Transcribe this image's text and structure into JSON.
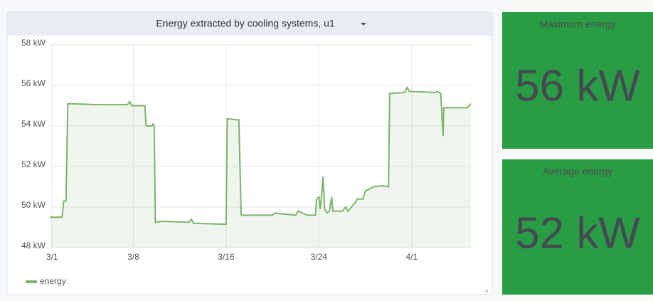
{
  "chart_data": {
    "type": "line",
    "title": "Energy extracted by cooling systems, u1",
    "x": [
      -0.2,
      0.85,
      1.0,
      1.2,
      1.35,
      4,
      6.5,
      6.7,
      6.85,
      8.0,
      8.1,
      8.6,
      8.7,
      8.8,
      8.9,
      9.5,
      11.8,
      12.0,
      12.2,
      15.0,
      15.1,
      16.1,
      16.3,
      19.0,
      19.2,
      21.0,
      21.2,
      21.6,
      22.0,
      22.7,
      22.8,
      23.0,
      23.1,
      23.2,
      23.35,
      23.5,
      23.7,
      23.9,
      24.1,
      24.2,
      25.0,
      25.3,
      25.5,
      26.1,
      26.3,
      26.8,
      27.0,
      27.2,
      27.7,
      28.5,
      29.0,
      29.1,
      30.4,
      30.6,
      30.8,
      33.0,
      33.2,
      33.5,
      33.7,
      33.75,
      35.8,
      36.1
    ],
    "series": [
      {
        "name": "energy",
        "color": "#7eb26d",
        "values": [
          49.5,
          49.5,
          50.3,
          50.3,
          55.1,
          55.05,
          55.05,
          55.2,
          55.0,
          55.0,
          54.0,
          54.0,
          54.1,
          54.0,
          49.25,
          49.3,
          49.25,
          49.4,
          49.2,
          49.15,
          54.35,
          54.3,
          49.6,
          49.6,
          49.7,
          49.6,
          49.8,
          49.7,
          49.6,
          49.6,
          50.4,
          50.5,
          49.9,
          50.4,
          51.5,
          49.9,
          49.7,
          49.8,
          50.5,
          49.8,
          49.8,
          50.0,
          49.8,
          50.2,
          50.4,
          50.4,
          50.8,
          50.85,
          51.0,
          51.05,
          51.0,
          55.6,
          55.65,
          55.9,
          55.7,
          55.65,
          55.7,
          55.6,
          53.5,
          54.9,
          54.9,
          55.1
        ]
      }
    ],
    "xlim": [
      -0.2,
      36.1
    ],
    "xticks": [
      {
        "value": 0,
        "label": "3/1"
      },
      {
        "value": 7,
        "label": "3/8"
      },
      {
        "value": 15,
        "label": "3/16"
      },
      {
        "value": 23,
        "label": "3/24"
      },
      {
        "value": 31,
        "label": "4/1"
      }
    ],
    "ylim": [
      48,
      58
    ],
    "yticks": [
      {
        "value": 48,
        "label": "48 kW"
      },
      {
        "value": 50,
        "label": "50 kW"
      },
      {
        "value": 52,
        "label": "52 kW"
      },
      {
        "value": 54,
        "label": "54 kW"
      },
      {
        "value": 56,
        "label": "56 kW"
      },
      {
        "value": 58,
        "label": "58 kW"
      }
    ],
    "grid": true
  },
  "stats": [
    {
      "title": "Maximum energy",
      "value": 56,
      "value_label": "56 kW",
      "color": "#299c46"
    },
    {
      "title": "Average energy",
      "value": 52,
      "value_label": "52 kW",
      "color": "#299c46"
    }
  ]
}
